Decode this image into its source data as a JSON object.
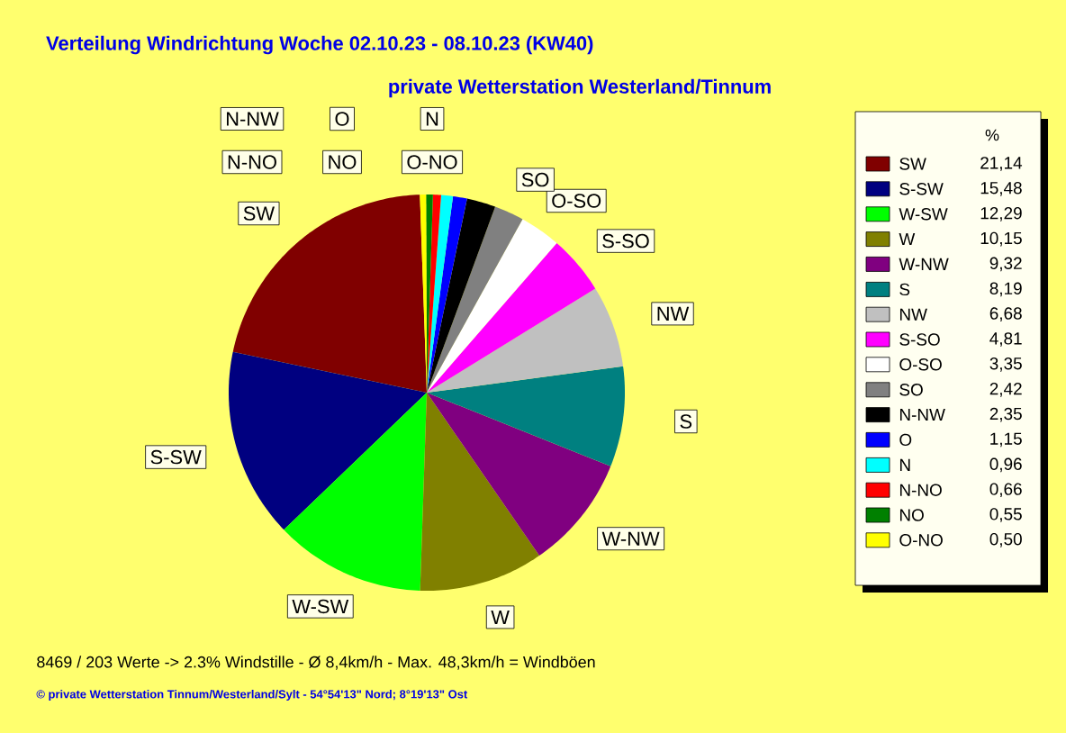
{
  "chart_data": {
    "type": "pie",
    "title": "Verteilung Windrichtung   Woche 02.10.23 - 08.10.23 (KW40)",
    "subtitle": "private Wetterstation Westerland/Tinnum",
    "legend_title": "%",
    "legend": "right",
    "categories": [
      "SW",
      "S-SW",
      "W-SW",
      "W",
      "W-NW",
      "S",
      "NW",
      "S-SO",
      "O-SO",
      "SO",
      "N-NW",
      "O",
      "N",
      "N-NO",
      "NO",
      "O-NO"
    ],
    "values": [
      21.14,
      15.48,
      12.29,
      10.15,
      9.32,
      8.19,
      6.68,
      4.81,
      3.35,
      2.42,
      2.35,
      1.15,
      0.96,
      0.66,
      0.55,
      0.5
    ],
    "value_labels": [
      "21,14",
      "15,48",
      "12,29",
      "10,15",
      "9,32",
      "8,19",
      "6,68",
      "4,81",
      "3,35",
      "2,42",
      "2,35",
      "1,15",
      "0,96",
      "0,66",
      "0,55",
      "0,50"
    ],
    "colors": [
      "#800000",
      "#000080",
      "#00ff00",
      "#808000",
      "#800080",
      "#008080",
      "#c0c0c0",
      "#ff00ff",
      "#ffffff",
      "#808080",
      "#000000",
      "#0000ff",
      "#00ffff",
      "#ff0000",
      "#008000",
      "#ffff00"
    ],
    "annotations": [
      "8469 / 203 Werte  -> 2.3% Windstille   -   Ø 8,4km/h  -  Max. 48,3km/h = Windböen",
      "© private Wetterstation Tinnum/Westerland/Sylt   -   54°54'13\" Nord; 8°19'13\" Ost"
    ]
  }
}
